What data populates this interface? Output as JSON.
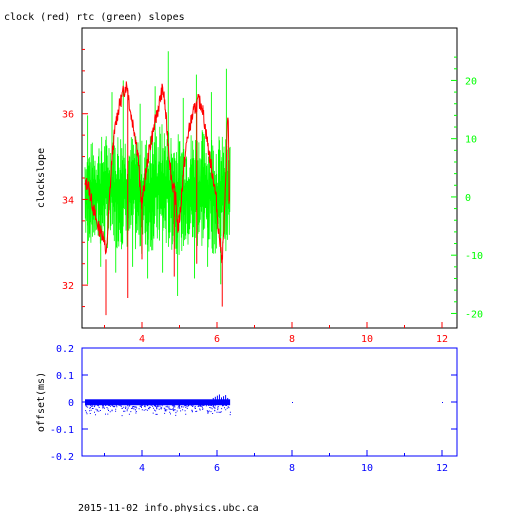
{
  "page": {
    "title": "clock (red) rtc (green) slopes",
    "footer": "2015-11-02 info.physics.ubc.ca"
  },
  "colors": {
    "clock": "#ff0000",
    "rtc": "#00ff00",
    "offset": "#0000ff",
    "axes": "#000000"
  },
  "chart_data": [
    {
      "type": "line",
      "title": "clock (red) rtc (green) slopes",
      "ylabel": "clockslope",
      "y2label": "",
      "xlim": [
        2.4,
        12.4
      ],
      "ylim": [
        31.0,
        38.0
      ],
      "y2lim": [
        -22.5,
        29
      ],
      "xticks": [
        4,
        6,
        8,
        10,
        12
      ],
      "yticks": [
        32,
        34,
        36
      ],
      "y2ticks": [
        -20,
        -10,
        0,
        10,
        20
      ],
      "grid": false,
      "series": [
        {
          "name": "clock",
          "axis": "left",
          "color": "#ff0000",
          "x": [
            2.48,
            2.55,
            2.62,
            2.7,
            2.78,
            2.86,
            2.94,
            3.0,
            3.04,
            3.1,
            3.2,
            3.3,
            3.4,
            3.5,
            3.6,
            3.7,
            3.8,
            3.9,
            3.95,
            4.0,
            4.1,
            4.2,
            4.3,
            4.4,
            4.5,
            4.55,
            4.6,
            4.65,
            4.7,
            4.75,
            4.8,
            4.86,
            4.9,
            4.96,
            5.02,
            5.1,
            5.2,
            5.3,
            5.4,
            5.5,
            5.6,
            5.7,
            5.8,
            5.9,
            5.98,
            6.02,
            6.08,
            6.14,
            6.2,
            6.25,
            6.28,
            6.3,
            6.33
          ],
          "y": [
            34.3,
            34.4,
            34.1,
            33.8,
            33.5,
            33.3,
            33.2,
            33.1,
            32.6,
            33.5,
            35.0,
            35.8,
            36.2,
            36.5,
            36.7,
            36.0,
            35.6,
            35.0,
            34.2,
            33.9,
            34.6,
            35.2,
            35.6,
            36.0,
            36.4,
            36.6,
            36.3,
            35.8,
            35.3,
            34.8,
            34.4,
            34.2,
            34.0,
            33.3,
            33.7,
            34.6,
            35.4,
            35.8,
            36.1,
            36.3,
            36.2,
            35.6,
            35.0,
            34.5,
            34.0,
            33.5,
            33.0,
            32.6,
            33.6,
            35.0,
            35.8,
            36.0,
            33.9
          ]
        },
        {
          "name": "rtc",
          "axis": "right",
          "color": "#00ff00",
          "x_range": [
            2.48,
            6.35
          ],
          "band_upper": [
            [
              2.5,
              9
            ],
            [
              3,
              11
            ],
            [
              3.5,
              12
            ],
            [
              4,
              10
            ],
            [
              4.5,
              13
            ],
            [
              5,
              11
            ],
            [
              5.5,
              12
            ],
            [
              6,
              11
            ],
            [
              6.35,
              10
            ]
          ],
          "band_lower": [
            [
              2.5,
              -8
            ],
            [
              3,
              -9
            ],
            [
              3.5,
              -9
            ],
            [
              4,
              -10
            ],
            [
              4.5,
              -9
            ],
            [
              5,
              -10
            ],
            [
              5.5,
              -9
            ],
            [
              6,
              -10
            ],
            [
              6.35,
              -9
            ]
          ],
          "peaks_upper": [
            [
              2.55,
              14
            ],
            [
              3.2,
              18
            ],
            [
              3.5,
              20
            ],
            [
              3.95,
              16
            ],
            [
              4.35,
              19
            ],
            [
              4.7,
              25
            ],
            [
              5.1,
              17
            ],
            [
              5.45,
              21
            ],
            [
              5.85,
              18
            ],
            [
              6.25,
              22
            ]
          ],
          "peaks_lower": [
            [
              2.55,
              -15
            ],
            [
              2.9,
              -12
            ],
            [
              3.3,
              -13
            ],
            [
              3.75,
              -12
            ],
            [
              4.15,
              -14
            ],
            [
              4.55,
              -13
            ],
            [
              4.95,
              -17
            ],
            [
              5.4,
              -14
            ],
            [
              5.75,
              -12
            ],
            [
              6.1,
              -15
            ]
          ]
        }
      ]
    },
    {
      "type": "scatter",
      "ylabel": "offset(ms)",
      "xlim": [
        2.4,
        12.4
      ],
      "ylim": [
        -0.2,
        0.2
      ],
      "xticks": [
        4,
        6,
        8,
        10,
        12
      ],
      "yticks": [
        -0.2,
        -0.1,
        0,
        0.1,
        0.2
      ],
      "grid": false,
      "series": [
        {
          "name": "offset",
          "color": "#0000ff",
          "band_x": [
            2.48,
            6.35
          ],
          "band_y": [
            -0.012,
            0.01
          ],
          "tail_y_min": -0.055,
          "spike_y_max": 0.03,
          "outliers": [
            [
              8.0,
              0.0
            ],
            [
              12.0,
              0.0
            ]
          ]
        }
      ]
    }
  ]
}
